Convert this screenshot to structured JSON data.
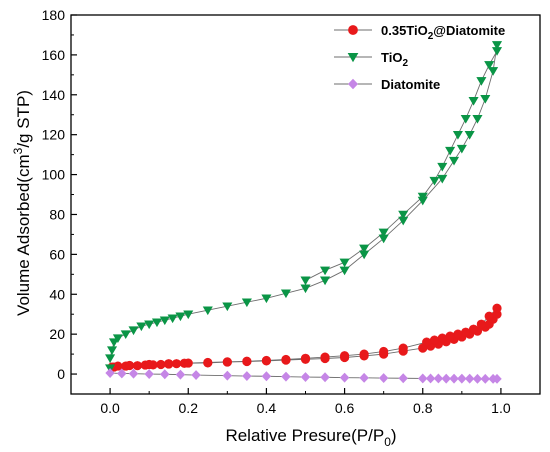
{
  "chart_data": {
    "type": "scatter",
    "xlabel": "Relative Presure(P/P0)",
    "xlabel_main": "Relative Presure(P/P",
    "xlabel_sub": "0",
    "xlabel_tail": ")",
    "ylabel": "Volume Adsorbed(cm3/g STP)",
    "ylabel_main": "Volume Adsorbed(cm",
    "ylabel_sup": "3",
    "ylabel_tail": "/g STP)",
    "xlim": [
      -0.1,
      1.1
    ],
    "ylim": [
      -10,
      180
    ],
    "xticks": [
      0.0,
      0.2,
      0.4,
      0.6,
      0.8,
      1.0
    ],
    "xtick_labels": [
      "0.0",
      "0.2",
      "0.4",
      "0.6",
      "0.8",
      "1.0"
    ],
    "yticks": [
      0,
      20,
      40,
      60,
      80,
      100,
      120,
      140,
      160,
      180
    ],
    "ytick_labels": [
      "0",
      "20",
      "40",
      "60",
      "80",
      "100",
      "120",
      "140",
      "160",
      "180"
    ],
    "grid": false,
    "legend_position": "top-right",
    "series": [
      {
        "name": "0.35TiO2@Diatomite",
        "legend_main": "0.35TiO",
        "legend_sub": "2",
        "legend_tail": "@Diatomite",
        "color": "#e8191b",
        "marker": "circle",
        "x": [
          0.005,
          0.01,
          0.02,
          0.04,
          0.07,
          0.09,
          0.11,
          0.13,
          0.15,
          0.17,
          0.19,
          0.25,
          0.3,
          0.35,
          0.4,
          0.45,
          0.5,
          0.55,
          0.6,
          0.65,
          0.7,
          0.75,
          0.8,
          0.82,
          0.84,
          0.86,
          0.88,
          0.9,
          0.92,
          0.94,
          0.96,
          0.97,
          0.98,
          0.99,
          0.99,
          0.97,
          0.95,
          0.93,
          0.91,
          0.89,
          0.87,
          0.85,
          0.83,
          0.81,
          0.75,
          0.7,
          0.65,
          0.6,
          0.55,
          0.5,
          0.45,
          0.4,
          0.35,
          0.3,
          0.25,
          0.2,
          0.15,
          0.1,
          0.05
        ],
        "y": [
          3.5,
          3.5,
          4,
          4,
          4.2,
          4.5,
          4.6,
          4.8,
          5,
          5.2,
          5.4,
          5.6,
          6,
          6.3,
          6.6,
          7,
          7.4,
          7.8,
          8.3,
          9.1,
          10,
          11.5,
          13,
          14,
          15,
          16.2,
          17.4,
          18.6,
          20,
          21.5,
          23.5,
          25,
          27.5,
          30,
          33,
          29,
          25,
          22.5,
          21,
          20,
          19,
          18,
          17,
          16,
          13,
          11.3,
          10,
          9.2,
          8.5,
          7.9,
          7.3,
          6.8,
          6.4,
          6.1,
          5.8,
          5.5,
          5.2,
          4.8,
          4.3
        ]
      },
      {
        "name": "TiO2",
        "legend_main": "TiO",
        "legend_sub": "2",
        "legend_tail": "",
        "color": "#0a9546",
        "marker": "triangle-down",
        "x": [
          0.0,
          0.0,
          0.005,
          0.01,
          0.02,
          0.04,
          0.06,
          0.08,
          0.1,
          0.12,
          0.14,
          0.16,
          0.18,
          0.2,
          0.25,
          0.3,
          0.35,
          0.4,
          0.45,
          0.5,
          0.55,
          0.6,
          0.65,
          0.7,
          0.75,
          0.8,
          0.85,
          0.88,
          0.9,
          0.92,
          0.94,
          0.96,
          0.98,
          0.99,
          0.99,
          0.97,
          0.95,
          0.93,
          0.91,
          0.89,
          0.87,
          0.85,
          0.83,
          0.8,
          0.75,
          0.7,
          0.65,
          0.6,
          0.55,
          0.5
        ],
        "y": [
          3,
          8,
          12,
          16,
          18,
          20,
          22,
          24,
          25,
          26,
          27,
          28,
          29,
          30,
          32,
          34,
          36,
          38,
          40.5,
          43,
          47,
          52,
          60,
          68,
          77,
          87,
          98,
          107,
          113,
          120,
          128,
          138,
          152,
          165,
          162,
          155,
          147,
          137,
          128,
          120,
          112,
          104,
          97,
          89,
          80,
          71,
          63,
          56,
          52,
          47
        ]
      },
      {
        "name": "Diatomite",
        "legend_main": "Diatomite",
        "legend_sub": "",
        "legend_tail": "",
        "color": "#c586e6",
        "marker": "diamond",
        "x": [
          0.0,
          0.03,
          0.06,
          0.1,
          0.14,
          0.18,
          0.22,
          0.3,
          0.35,
          0.4,
          0.45,
          0.5,
          0.55,
          0.6,
          0.65,
          0.7,
          0.75,
          0.8,
          0.82,
          0.84,
          0.86,
          0.88,
          0.9,
          0.92,
          0.94,
          0.96,
          0.98,
          0.99
        ],
        "y": [
          0.5,
          0.3,
          0.2,
          0.0,
          -0.1,
          -0.3,
          -0.5,
          -0.8,
          -1.0,
          -1.1,
          -1.3,
          -1.5,
          -1.6,
          -1.8,
          -1.9,
          -2.0,
          -2.1,
          -2.2,
          -2.2,
          -2.2,
          -2.3,
          -2.3,
          -2.3,
          -2.3,
          -2.4,
          -2.4,
          -2.4,
          -2.4
        ]
      }
    ]
  }
}
